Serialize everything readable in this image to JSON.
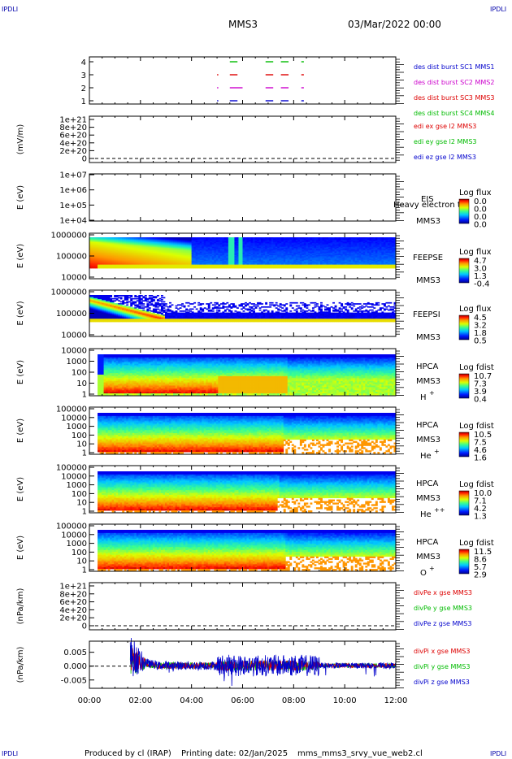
{
  "header": {
    "corner_tl": "IPDLI",
    "corner_tr": "IPDLI",
    "mission": "MMS3",
    "date": "03/Mar/2022 00:00",
    "corner_bl": "IPDLI",
    "corner_br": "IPDLI"
  },
  "footer": {
    "produced_by": "Produced by cl (IRAP)",
    "printing_date": "Printing date: 02/Jan/2025",
    "filename": "mms_mms3_srvy_vue_web2.cl"
  },
  "chart_data": {
    "type": "multi-panel time series / spectrogram",
    "time_axis": {
      "ticks": [
        "00:00",
        "02:00",
        "04:00",
        "06:00",
        "08:00",
        "10:00",
        "12:00"
      ],
      "range_hours": [
        0,
        12
      ]
    },
    "panels": [
      {
        "id": "burst",
        "type": "timeline",
        "yticks": [
          "4",
          "3",
          "2",
          "1"
        ],
        "legend": [
          {
            "label": "des dist burst SC1 MMS1",
            "color": "#0000cc"
          },
          {
            "label": "des dist burst SC2 MMS2",
            "color": "#cc00cc"
          },
          {
            "label": "des dist burst SC3 MMS3",
            "color": "#dd0000"
          },
          {
            "label": "des dist burst SC4 MMS4",
            "color": "#00bb00"
          }
        ],
        "segments": [
          {
            "row": 4,
            "color": "#00bb00",
            "hours": [
              [
                5.5,
                5.8
              ],
              [
                6.9,
                7.2
              ],
              [
                7.5,
                7.8
              ],
              [
                8.3,
                8.4
              ]
            ]
          },
          {
            "row": 3,
            "color": "#dd0000",
            "hours": [
              [
                5.0,
                5.05
              ],
              [
                5.5,
                5.8
              ],
              [
                6.9,
                7.2
              ],
              [
                7.5,
                7.8
              ],
              [
                8.3,
                8.4
              ]
            ]
          },
          {
            "row": 2,
            "color": "#cc00cc",
            "hours": [
              [
                5.0,
                5.05
              ],
              [
                5.5,
                6.0
              ],
              [
                6.9,
                7.2
              ],
              [
                7.5,
                7.8
              ],
              [
                8.3,
                8.4
              ]
            ]
          },
          {
            "row": 1,
            "color": "#0000cc",
            "hours": [
              [
                5.0,
                5.05
              ],
              [
                5.5,
                5.8
              ],
              [
                6.9,
                7.2
              ],
              [
                7.5,
                7.8
              ],
              [
                8.3,
                8.4
              ]
            ]
          }
        ]
      },
      {
        "id": "edi",
        "type": "line",
        "ylabel": "(mV/m)",
        "yticks": [
          "1e+21",
          "8e+20",
          "6e+20",
          "4e+20",
          "2e+20",
          "0"
        ],
        "legend": [
          {
            "label": "edi ex gse l2 MMS3",
            "color": "#dd0000"
          },
          {
            "label": "edi ey gse l2 MMS3",
            "color": "#00bb00"
          },
          {
            "label": "edi ez gse l2 MMS3",
            "color": "#0000cc"
          }
        ]
      },
      {
        "id": "eis",
        "type": "heatmap",
        "ylabel": "E (eV)",
        "yticks": [
          "1e+07",
          "1e+06",
          "1e+05",
          "1e+04"
        ],
        "instrument": "EIS",
        "sc": "MMS3",
        "overlay": "Heavy electron to",
        "colorbar": {
          "title": "Log flux",
          "ticks": [
            "0.0",
            "0.0",
            "0.0",
            "0.0"
          ]
        }
      },
      {
        "id": "feepse",
        "type": "heatmap",
        "ylabel": "E (eV)",
        "yticks": [
          "1000000",
          "100000",
          "10000"
        ],
        "instrument": "FEEPSE",
        "sc": "MMS3",
        "colorbar": {
          "title": "Log flux",
          "ticks": [
            "4.7",
            "3.0",
            "1.3",
            "-0.4"
          ]
        }
      },
      {
        "id": "feepsi",
        "type": "heatmap",
        "ylabel": "E (eV)",
        "yticks": [
          "1000000",
          "100000",
          "10000"
        ],
        "instrument": "FEEPSI",
        "sc": "MMS3",
        "colorbar": {
          "title": "Log flux",
          "ticks": [
            "4.5",
            "3.2",
            "1.8",
            "0.5"
          ]
        }
      },
      {
        "id": "hpca_h",
        "type": "heatmap",
        "ylabel": "E (eV)",
        "yticks": [
          "10000",
          "1000",
          "100",
          "10",
          "1"
        ],
        "instrument": "HPCA",
        "sc": "MMS3",
        "species": "H",
        "charge": "+",
        "colorbar": {
          "title": "Log fdist",
          "ticks": [
            "10.7",
            "7.3",
            "3.9",
            "0.4"
          ]
        }
      },
      {
        "id": "hpca_he",
        "type": "heatmap",
        "ylabel": "E (eV)",
        "yticks": [
          "100000",
          "10000",
          "1000",
          "100",
          "10",
          "1"
        ],
        "instrument": "HPCA",
        "sc": "MMS3",
        "species": "He",
        "charge": "+",
        "colorbar": {
          "title": "Log fdist",
          "ticks": [
            "10.5",
            "7.5",
            "4.6",
            "1.6"
          ]
        }
      },
      {
        "id": "hpca_he2",
        "type": "heatmap",
        "ylabel": "E (eV)",
        "yticks": [
          "100000",
          "10000",
          "1000",
          "100",
          "10",
          "1"
        ],
        "instrument": "HPCA",
        "sc": "MMS3",
        "species": "He",
        "charge": "++",
        "colorbar": {
          "title": "Log fdist",
          "ticks": [
            "10.0",
            "7.1",
            "4.2",
            "1.3"
          ]
        }
      },
      {
        "id": "hpca_o",
        "type": "heatmap",
        "ylabel": "E (eV)",
        "yticks": [
          "100000",
          "10000",
          "1000",
          "100",
          "10",
          "1"
        ],
        "instrument": "HPCA",
        "sc": "MMS3",
        "species": "O",
        "charge": "+",
        "colorbar": {
          "title": "Log fdist",
          "ticks": [
            "11.5",
            "8.6",
            "5.7",
            "2.9"
          ]
        }
      },
      {
        "id": "divpe",
        "type": "line",
        "ylabel": "(nPa/km)",
        "yticks": [
          "1e+21",
          "8e+20",
          "6e+20",
          "4e+20",
          "2e+20",
          "0"
        ],
        "legend": [
          {
            "label": "divPe x gse MMS3",
            "color": "#dd0000"
          },
          {
            "label": "divPe y gse MMS3",
            "color": "#00bb00"
          },
          {
            "label": "divPe z gse MMS3",
            "color": "#0000cc"
          }
        ]
      },
      {
        "id": "divpi",
        "type": "line",
        "ylabel": "(nPa/km)",
        "yticks": [
          "0.005",
          "0.000",
          "-0.005"
        ],
        "ylim": [
          -0.008,
          0.009
        ],
        "legend": [
          {
            "label": "divPi x gse MMS3",
            "color": "#dd0000"
          },
          {
            "label": "divPi y gse MMS3",
            "color": "#00bb00"
          },
          {
            "label": "divPi z gse MMS3",
            "color": "#0000cc"
          }
        ]
      }
    ]
  }
}
